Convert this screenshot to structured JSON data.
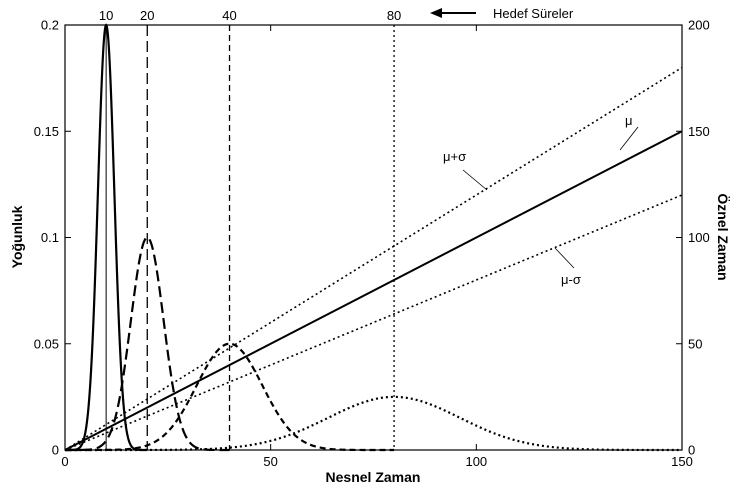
{
  "chart_data": {
    "type": "line",
    "xlabel": "Nesnel Zaman",
    "ylabel": "Yoğunluk",
    "y2label": "Öznel Zaman",
    "xlim": [
      0,
      150
    ],
    "ylim": [
      0,
      0.2
    ],
    "y2lim": [
      0,
      200
    ],
    "x_ticks": [
      "0",
      "50",
      "100",
      "150"
    ],
    "y_ticks": [
      "0",
      "0.05",
      "0.1",
      "0.15",
      "0.2"
    ],
    "y2_ticks": [
      "0",
      "50",
      "100",
      "150",
      "200"
    ],
    "grid": false,
    "legend": "none",
    "target_durations_label": "Hedef Süreler",
    "target_durations": [
      10,
      20,
      40,
      80
    ],
    "target_tick_labels": [
      "10",
      "20",
      "40",
      "80"
    ],
    "density_series": [
      {
        "mean": 10,
        "sd": 2,
        "peak": 0.2,
        "style": "solid"
      },
      {
        "mean": 20,
        "sd": 4,
        "peak": 0.1,
        "style": "longdash"
      },
      {
        "mean": 40,
        "sd": 8,
        "peak": 0.05,
        "style": "dash"
      },
      {
        "mean": 80,
        "sd": 16,
        "peak": 0.025,
        "style": "dot"
      }
    ],
    "subjective_lines": [
      {
        "name": "μ",
        "slope": 1.0,
        "x": [
          0,
          150
        ],
        "y": [
          0,
          150
        ],
        "style": "solid"
      },
      {
        "name": "μ+σ",
        "slope": 1.2,
        "x": [
          0,
          150
        ],
        "y": [
          0,
          180
        ],
        "style": "dot"
      },
      {
        "name": "μ-σ",
        "slope": 0.8,
        "x": [
          0,
          150
        ],
        "y": [
          0,
          120
        ],
        "style": "dot"
      }
    ],
    "line_labels": [
      "μ",
      "μ+σ",
      "μ-σ"
    ]
  }
}
